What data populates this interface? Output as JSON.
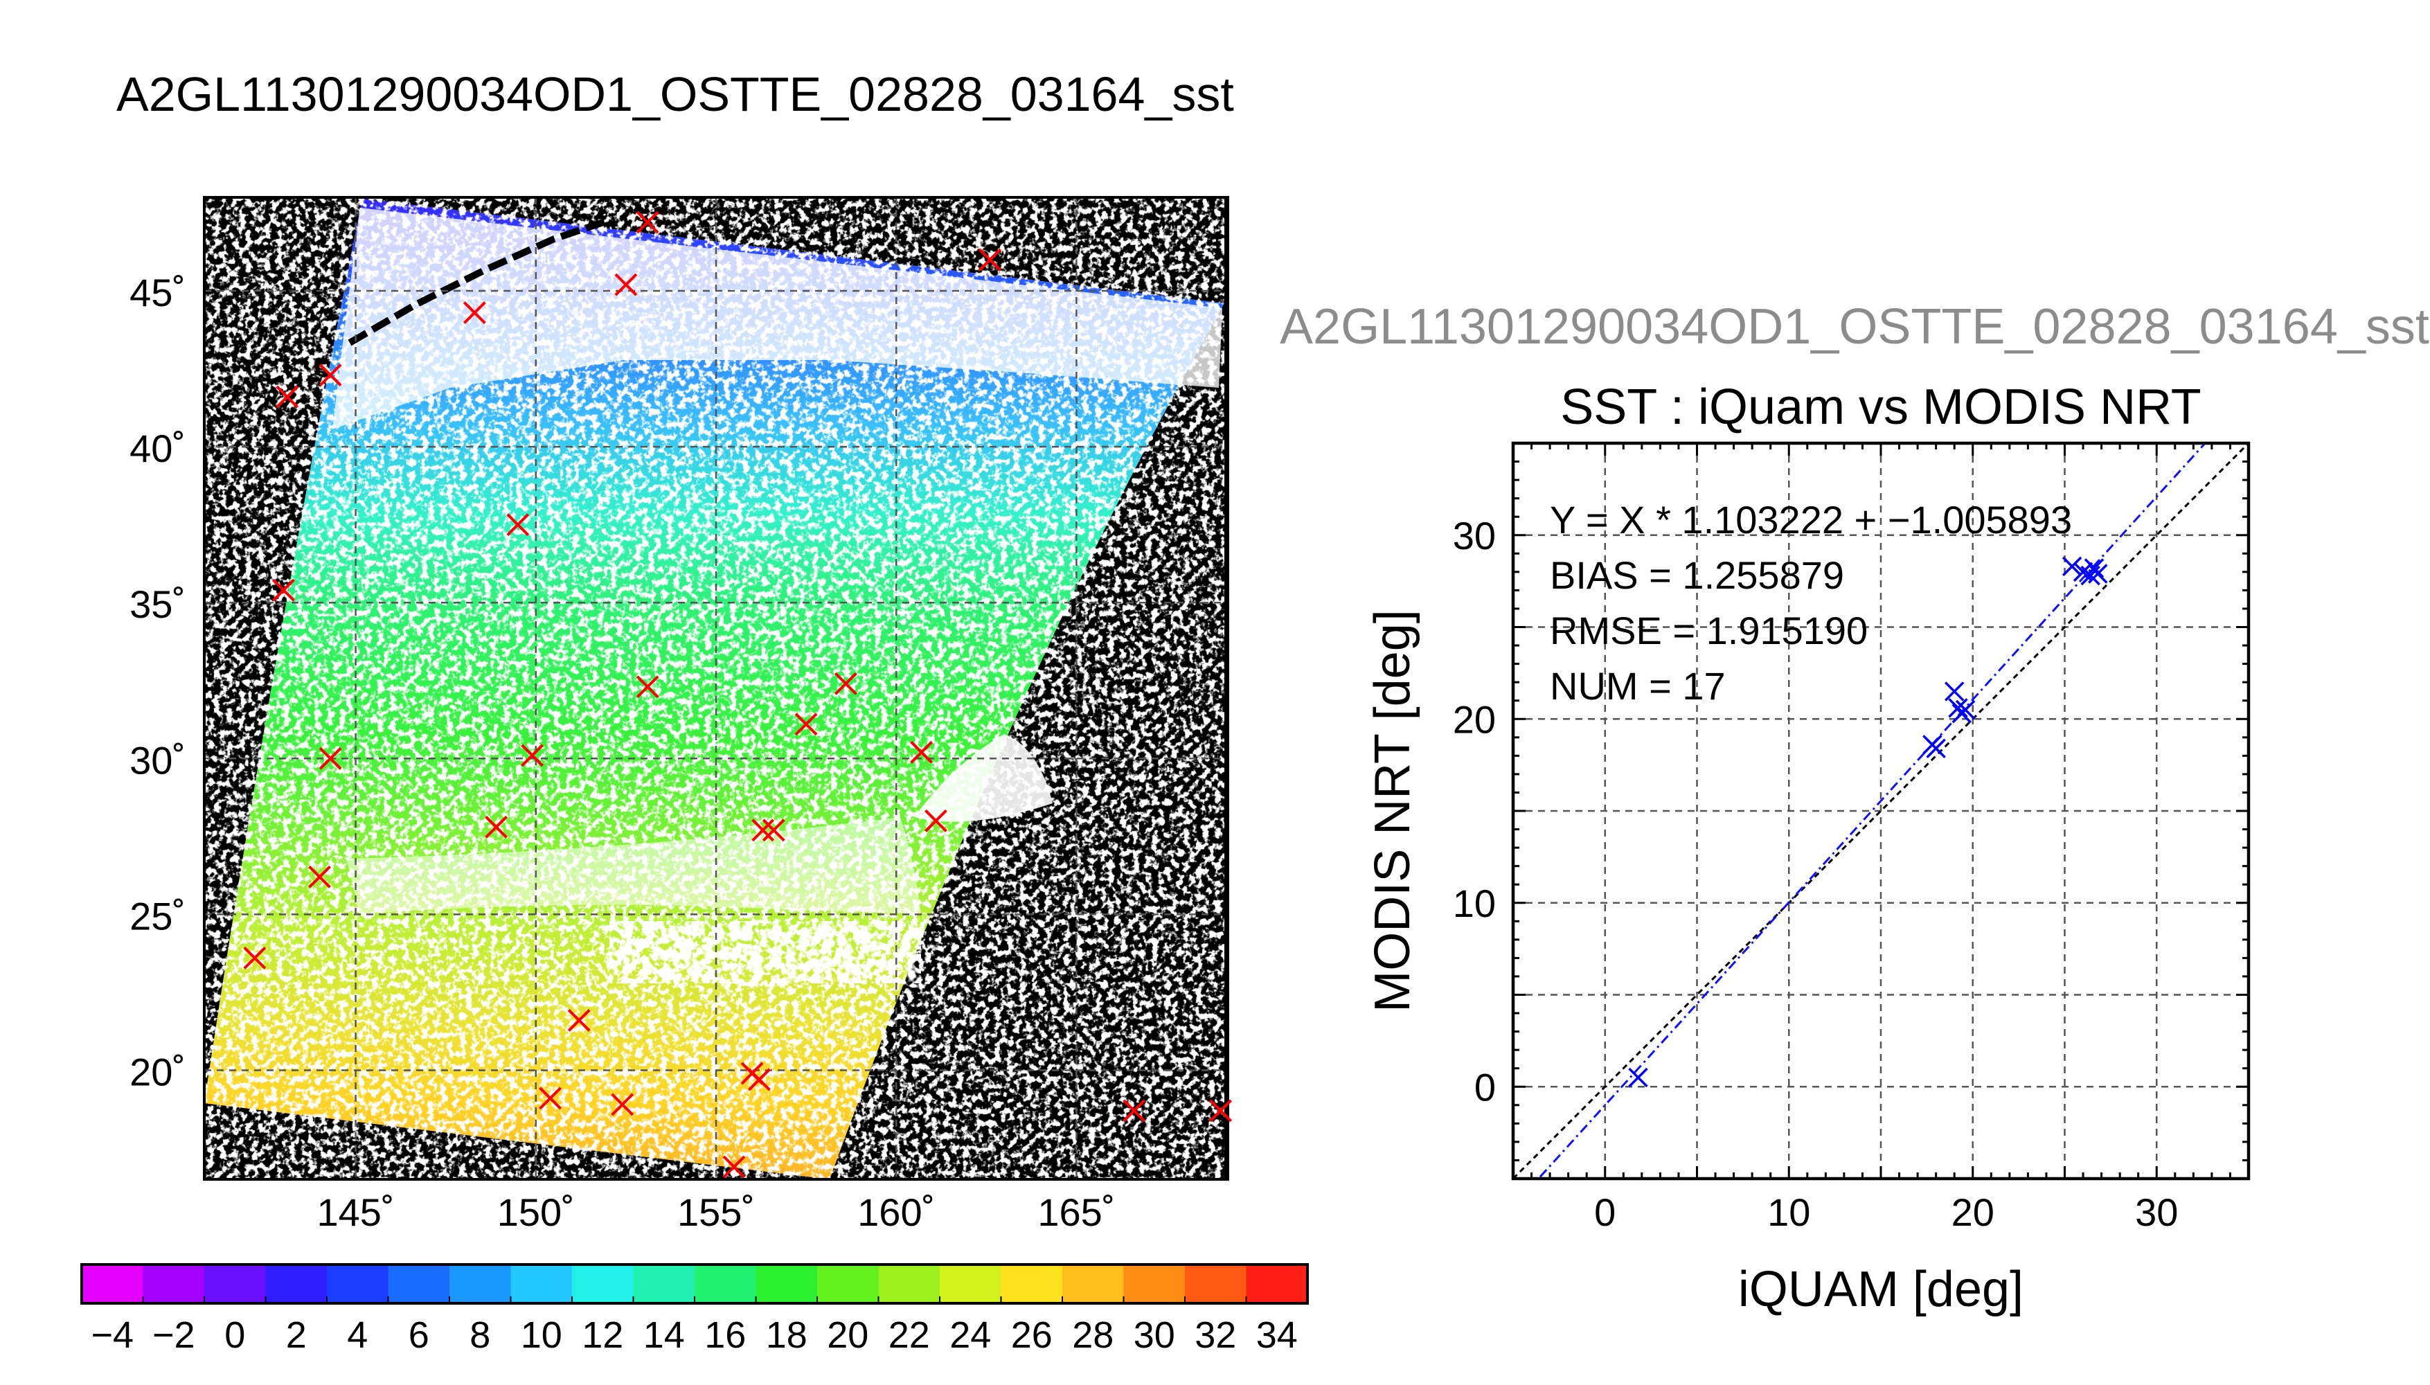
{
  "page": {
    "title": "A2GL11301290034OD1_OSTTE_02828_03164_sst",
    "subtitle_gray": "A2GL11301290034OD1_OSTTE_02828_03164_sst"
  },
  "map": {
    "lat_ticks": [
      "45˚",
      "40˚",
      "35˚",
      "30˚",
      "25˚",
      "20˚"
    ],
    "lon_ticks": [
      "145˚",
      "150˚",
      "155˚",
      "160˚",
      "165˚"
    ],
    "lat_range": [
      16.5,
      48
    ],
    "lon_range": [
      140.8,
      169.2
    ]
  },
  "colorbar": {
    "tick_labels": [
      "−4",
      "−2",
      "0",
      "2",
      "4",
      "6",
      "8",
      "10",
      "12",
      "14",
      "16",
      "18",
      "20",
      "22",
      "24",
      "26",
      "28",
      "30",
      "32",
      "34"
    ],
    "range": [
      -5,
      35
    ]
  },
  "chart_data": {
    "type": "scatter",
    "title": "SST : iQuam vs MODIS NRT",
    "xlabel": "iQUAM [deg]",
    "ylabel": "MODIS NRT [deg]",
    "xlim": [
      -5,
      35
    ],
    "ylim": [
      -5,
      35
    ],
    "x_ticks": [
      "0",
      "10",
      "20",
      "30"
    ],
    "y_ticks": [
      "0",
      "10",
      "20",
      "30"
    ],
    "grid": true,
    "stats": {
      "fit": "Y = X * 1.103222 + −1.005893",
      "bias": "BIAS = 1.255879",
      "rmse": "RMSE = 1.915190",
      "num": "NUM = 17"
    },
    "fit_line": {
      "slope": 1.103222,
      "intercept": -1.005893
    },
    "points": [
      {
        "x": 1.8,
        "y": 0.5
      },
      {
        "x": 17.8,
        "y": 18.6
      },
      {
        "x": 18.0,
        "y": 18.4
      },
      {
        "x": 19.0,
        "y": 21.5
      },
      {
        "x": 19.2,
        "y": 20.6
      },
      {
        "x": 19.4,
        "y": 20.3
      },
      {
        "x": 19.6,
        "y": 20.5
      },
      {
        "x": 25.4,
        "y": 28.3
      },
      {
        "x": 26.0,
        "y": 28.0
      },
      {
        "x": 26.4,
        "y": 27.8
      },
      {
        "x": 26.6,
        "y": 28.2
      },
      {
        "x": 26.8,
        "y": 27.9
      }
    ]
  }
}
